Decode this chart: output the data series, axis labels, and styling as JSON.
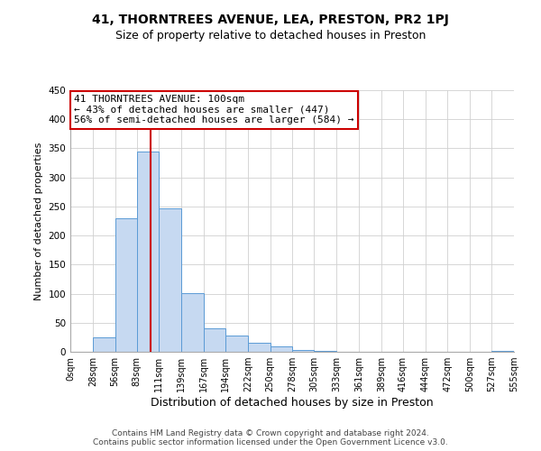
{
  "title": "41, THORNTREES AVENUE, LEA, PRESTON, PR2 1PJ",
  "subtitle": "Size of property relative to detached houses in Preston",
  "xlabel": "Distribution of detached houses by size in Preston",
  "ylabel": "Number of detached properties",
  "footer_line1": "Contains HM Land Registry data © Crown copyright and database right 2024.",
  "footer_line2": "Contains public sector information licensed under the Open Government Licence v3.0.",
  "bar_edges": [
    0,
    28,
    56,
    83,
    111,
    139,
    167,
    194,
    222,
    250,
    278,
    305,
    333,
    361,
    389,
    416,
    444,
    472,
    500,
    527,
    555
  ],
  "bar_heights": [
    0,
    25,
    230,
    345,
    247,
    101,
    40,
    28,
    15,
    10,
    3,
    1,
    0,
    0,
    0,
    0,
    0,
    0,
    0,
    1
  ],
  "bar_color": "#c6d9f1",
  "bar_edge_color": "#5b9bd5",
  "property_size": 100,
  "property_line_color": "#cc0000",
  "annotation_title": "41 THORNTREES AVENUE: 100sqm",
  "annotation_line1": "← 43% of detached houses are smaller (447)",
  "annotation_line2": "56% of semi-detached houses are larger (584) →",
  "annotation_box_edge_color": "#cc0000",
  "ylim": [
    0,
    450
  ],
  "xlim": [
    0,
    555
  ],
  "tick_positions": [
    0,
    28,
    56,
    83,
    111,
    139,
    167,
    194,
    222,
    250,
    278,
    305,
    333,
    361,
    389,
    416,
    444,
    472,
    500,
    527,
    555
  ],
  "tick_labels": [
    "0sqm",
    "28sqm",
    "56sqm",
    "83sqm",
    "111sqm",
    "139sqm",
    "167sqm",
    "194sqm",
    "222sqm",
    "250sqm",
    "278sqm",
    "305sqm",
    "333sqm",
    "361sqm",
    "389sqm",
    "416sqm",
    "444sqm",
    "472sqm",
    "500sqm",
    "527sqm",
    "555sqm"
  ],
  "ytick_positions": [
    0,
    50,
    100,
    150,
    200,
    250,
    300,
    350,
    400,
    450
  ],
  "ytick_labels": [
    "0",
    "50",
    "100",
    "150",
    "200",
    "250",
    "300",
    "350",
    "400",
    "450"
  ],
  "grid_color": "#d0d0d0",
  "background_color": "#ffffff",
  "title_fontsize": 10,
  "subtitle_fontsize": 9,
  "xlabel_fontsize": 9,
  "ylabel_fontsize": 8,
  "footer_fontsize": 6.5,
  "tick_fontsize": 7,
  "annotation_fontsize": 8
}
